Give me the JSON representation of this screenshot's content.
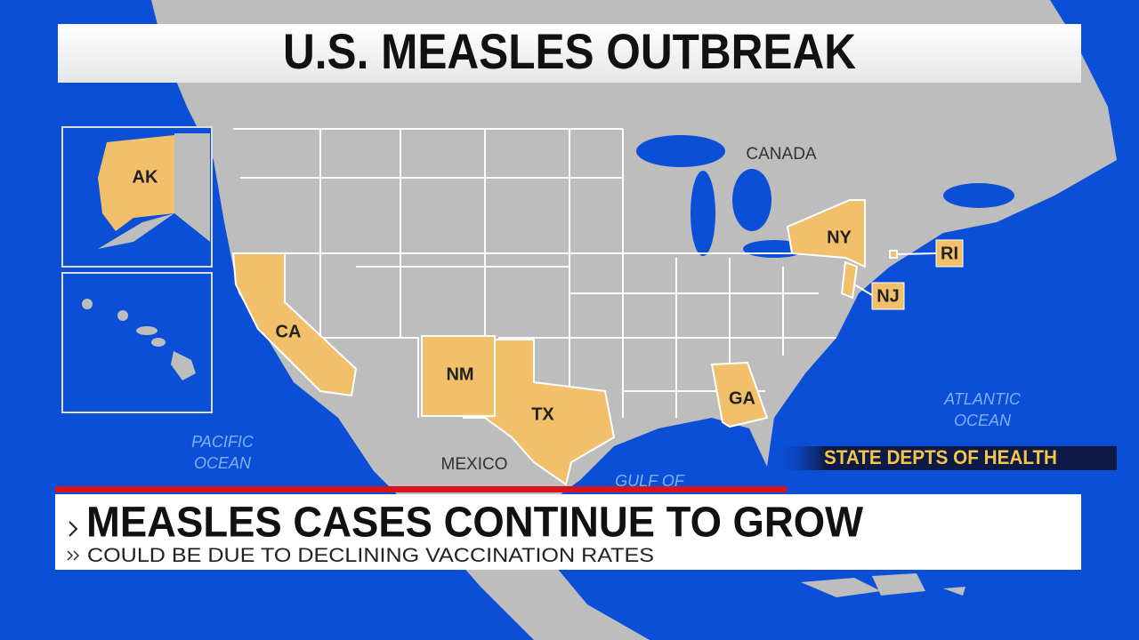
{
  "header": {
    "title": "U.S. MEASLES OUTBREAK"
  },
  "map": {
    "states": [
      "AK",
      "CA",
      "NM",
      "TX",
      "GA",
      "NY",
      "RI",
      "NJ"
    ],
    "regions": {
      "canada": "CANADA",
      "mexico": "MEXICO"
    },
    "water": {
      "pacific": [
        "PACIFIC",
        "OCEAN"
      ],
      "atlantic": [
        "ATLANTIC",
        "OCEAN"
      ],
      "gulf": "GULF OF"
    }
  },
  "source": "STATE DEPTS OF HEALTH",
  "lower_third": {
    "headline": "MEASLES CASES CONTINUE TO GROW",
    "subheadline": "COULD BE DUE TO DECLINING VACCINATION RATES"
  }
}
